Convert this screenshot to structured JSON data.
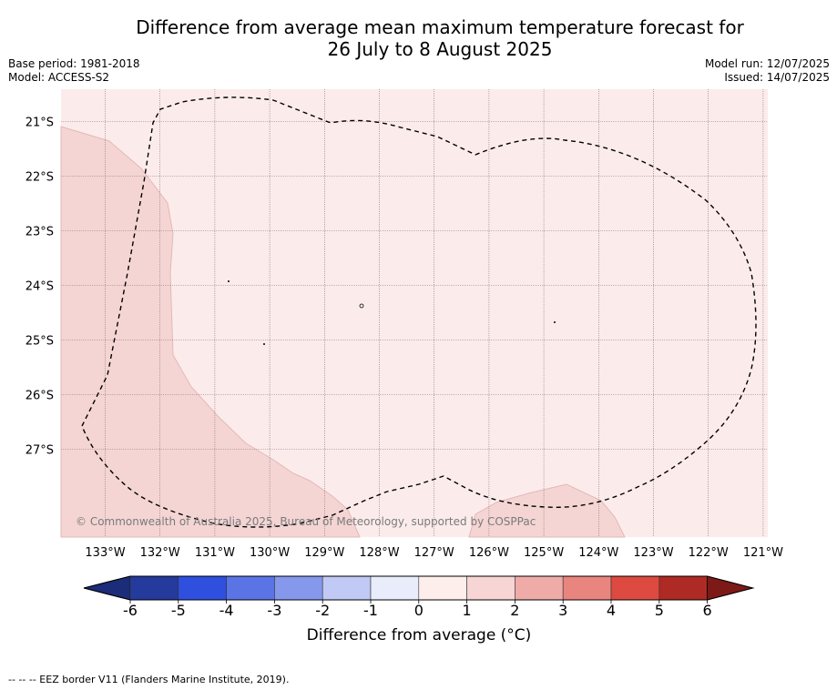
{
  "title": {
    "line1": "Difference from average mean maximum temperature forecast for",
    "line2": "26 July to 8 August 2025"
  },
  "meta_left": [
    "Base period: 1981-2018",
    "Model: ACCESS-S2"
  ],
  "meta_right": [
    "Model run: 12/07/2025",
    "Issued: 14/07/2025"
  ],
  "map": {
    "lat_labels": [
      "21°S",
      "22°S",
      "23°S",
      "24°S",
      "25°S",
      "26°S",
      "27°S"
    ],
    "lon_labels": [
      "133°W",
      "132°W",
      "131°W",
      "130°W",
      "129°W",
      "128°W",
      "127°W",
      "126°W",
      "125°W",
      "124°W",
      "123°W",
      "122°W",
      "121°W"
    ],
    "copyright": "© Commonwealth of Australia 2025, Bureau of Meteorology, supported by COSPPac",
    "background_color": "#fbeceb",
    "warmer_region_color": "#f4d5d4"
  },
  "colorbar": {
    "ticks": [
      "-6",
      "-5",
      "-4",
      "-3",
      "-2",
      "-1",
      "0",
      "1",
      "2",
      "3",
      "4",
      "5",
      "6"
    ],
    "colors": [
      "#243a9c",
      "#2f4fde",
      "#5a74e6",
      "#8598ec",
      "#c1c9f5",
      "#e9ecfb",
      "#fdeeec",
      "#f6d5d4",
      "#eeaba8",
      "#e8857f",
      "#dc4a40",
      "#ae2a24"
    ],
    "low_extend_color": "#1b2c78",
    "high_extend_color": "#7d1a18",
    "label": "Difference from average (°C)"
  },
  "footnote": "--  --  -- EEZ border V11 (Flanders Marine Institute, 2019)."
}
